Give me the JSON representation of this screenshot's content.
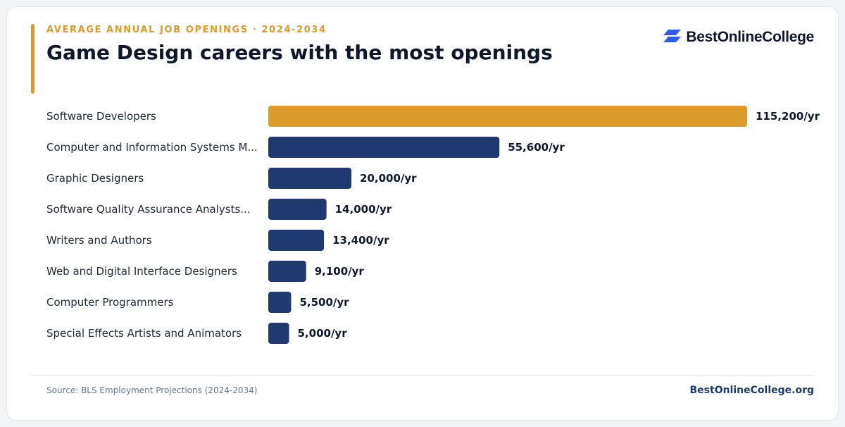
{
  "header": {
    "eyebrow": "AVERAGE ANNUAL JOB OPENINGS · 2024-2034",
    "title": "Game Design careers with the most openings"
  },
  "logo": {
    "text": "BestOnlineCollege",
    "icon": "stacked-parallelogram-logo-icon",
    "color": "#2f5bea"
  },
  "colors": {
    "highlight": "#dc9a2a",
    "bar": "#1e3a6e"
  },
  "chart_data": {
    "type": "bar",
    "orientation": "horizontal",
    "categories": [
      "Software Developers",
      "Computer and Information Systems M...",
      "Graphic Designers",
      "Software Quality Assurance Analysts...",
      "Writers and Authors",
      "Web and Digital Interface Designers",
      "Computer Programmers",
      "Special Effects Artists and Animators"
    ],
    "values": [
      115200,
      55600,
      20000,
      14000,
      13400,
      9100,
      5500,
      5000
    ],
    "value_labels": [
      "115,200/yr",
      "55,600/yr",
      "20,000/yr",
      "14,000/yr",
      "13,400/yr",
      "9,100/yr",
      "5,500/yr",
      "5,000/yr"
    ],
    "highlight_index": 0,
    "xlim": [
      0,
      115200
    ],
    "grid": false,
    "legend": "none"
  },
  "footer": {
    "source": "Source: BLS Employment Projections (2024-2034)",
    "site": "BestOnlineCollege.org"
  }
}
